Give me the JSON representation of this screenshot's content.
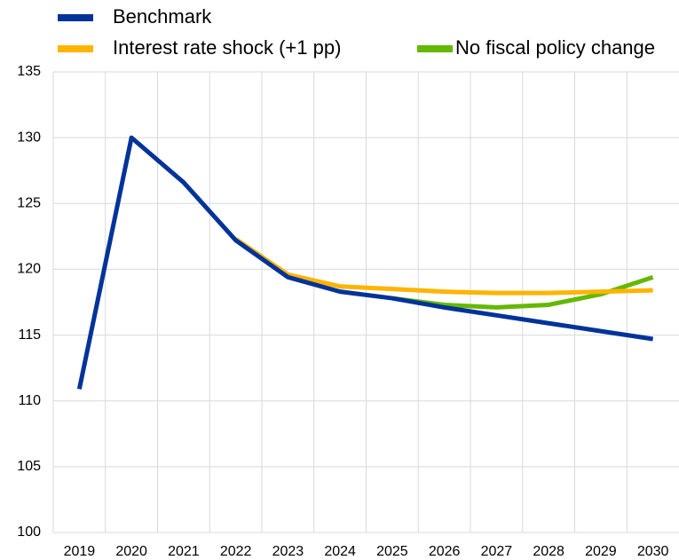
{
  "chart_data": {
    "type": "line",
    "categories": [
      "2019",
      "2020",
      "2021",
      "2022",
      "2023",
      "2024",
      "2025",
      "2026",
      "2027",
      "2028",
      "2029",
      "2030"
    ],
    "series": [
      {
        "name": "Benchmark",
        "color": "#003399",
        "values": [
          110.9,
          130,
          126.6,
          122.2,
          119.4,
          118.3,
          117.8,
          117.1,
          116.5,
          115.9,
          115.3,
          114.7
        ]
      },
      {
        "name": "Interest rate shock (+1 pp)",
        "color": "#ffb400",
        "values": [
          null,
          null,
          null,
          122.3,
          119.6,
          118.7,
          118.5,
          118.3,
          118.2,
          118.2,
          118.3,
          118.4
        ]
      },
      {
        "name": "No fiscal policy change",
        "color": "#65b800",
        "values": [
          null,
          null,
          null,
          null,
          null,
          null,
          117.8,
          117.3,
          117.1,
          117.3,
          118.1,
          119.4
        ]
      }
    ],
    "ylim": [
      100,
      135
    ],
    "yticks": [
      100,
      105,
      110,
      115,
      120,
      125,
      130,
      135
    ],
    "grid": true
  }
}
